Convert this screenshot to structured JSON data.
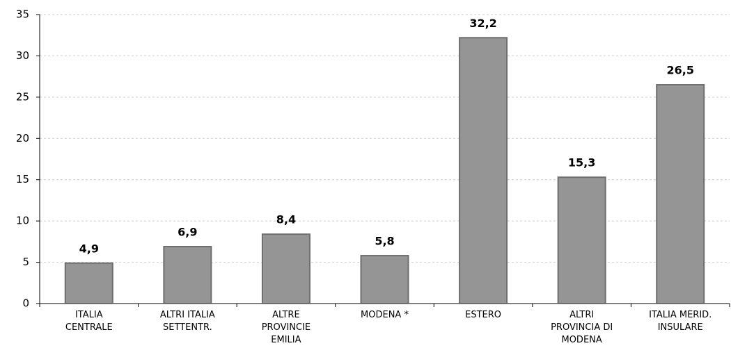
{
  "chart_data": {
    "type": "bar",
    "categories": [
      "ITALIA\nCENTRALE",
      "ALTRI ITALIA\nSETTENTR.",
      "ALTRE\nPROVINCIE\nEMILIA",
      "MODENA *",
      "ESTERO",
      "ALTRI\nPROVINCIA DI\nMODENA",
      "ITALIA MERID.\nINSULARE"
    ],
    "values": [
      4.9,
      6.9,
      8.4,
      5.8,
      32.2,
      15.3,
      26.5
    ],
    "value_labels": [
      "4,9",
      "6,9",
      "8,4",
      "5,8",
      "32,2",
      "15,3",
      "26,5"
    ],
    "color": "#959595",
    "ylim": [
      0,
      35
    ],
    "yticks": [
      0,
      5,
      10,
      15,
      20,
      25,
      30,
      35
    ],
    "grid": true
  }
}
